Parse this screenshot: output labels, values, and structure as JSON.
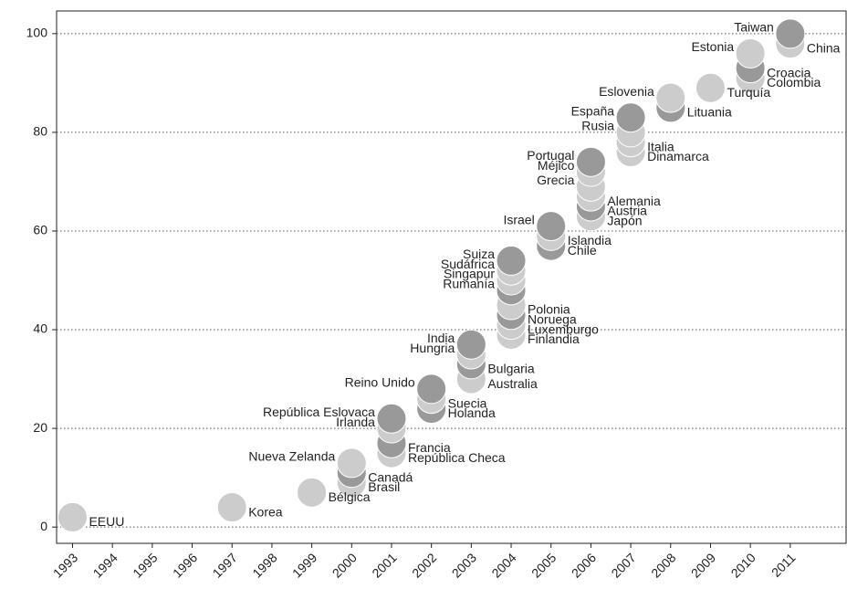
{
  "chart_data": {
    "type": "scatter",
    "x": [
      1993,
      1997,
      1999,
      2000,
      2000,
      2000,
      2001,
      2001,
      2001,
      2001,
      2002,
      2002,
      2002,
      2003,
      2003,
      2003,
      2003,
      2004,
      2004,
      2004,
      2004,
      2004,
      2004,
      2004,
      2004,
      2005,
      2005,
      2005,
      2006,
      2006,
      2006,
      2006,
      2006,
      2006,
      2007,
      2007,
      2007,
      2007,
      2008,
      2008,
      2009,
      2010,
      2010,
      2010,
      2011,
      2011
    ],
    "values": [
      2,
      4,
      7,
      9,
      11,
      13,
      15,
      17,
      20,
      22,
      24,
      26,
      28,
      30,
      33,
      35,
      37,
      39,
      41,
      43,
      45,
      48,
      50,
      52,
      54,
      57,
      59,
      61,
      63,
      65,
      67,
      69,
      72,
      74,
      76,
      78,
      80,
      83,
      85,
      87,
      89,
      91,
      93,
      96,
      98,
      100
    ],
    "labels": [
      "EEUU",
      "Korea",
      "Bélgica",
      "Brasil",
      "Canadá",
      "Nueva Zelanda",
      "República Checa",
      "Francia",
      "Irlanda",
      "República Eslovaca",
      "Holanda",
      "Suecia",
      "Reino Unido",
      "Australia",
      "Bulgaria",
      "Hungria",
      "India",
      "Finlandia",
      "Luxemburgo",
      "Noruega",
      "Polonia",
      "Rumanía",
      "Singapur",
      "Sudáfrica",
      "Suiza",
      "Chile",
      "Islandia",
      "Israel",
      "Japón",
      "Austria",
      "Alemania",
      "Grecia",
      "Méjico",
      "Portugal",
      "Dinamarca",
      "Italia",
      "Rusia",
      "España",
      "Lituania",
      "Eslovenia",
      "Turquía",
      "Colombia",
      "Croacia",
      "Estonia",
      "China",
      "Taiwan"
    ],
    "colors": [
      "#cccccc",
      "#cccccc",
      "#cccccc",
      "#cccccc",
      "#999999",
      "#cccccc",
      "#cccccc",
      "#999999",
      "#cccccc",
      "#999999",
      "#999999",
      "#cccccc",
      "#999999",
      "#cccccc",
      "#999999",
      "#cccccc",
      "#999999",
      "#cccccc",
      "#cccccc",
      "#999999",
      "#cccccc",
      "#999999",
      "#cccccc",
      "#cccccc",
      "#999999",
      "#999999",
      "#cccccc",
      "#999999",
      "#cccccc",
      "#999999",
      "#cccccc",
      "#cccccc",
      "#cccccc",
      "#999999",
      "#cccccc",
      "#cccccc",
      "#cccccc",
      "#999999",
      "#999999",
      "#cccccc",
      "#cccccc",
      "#cccccc",
      "#999999",
      "#cccccc",
      "#cccccc",
      "#999999"
    ],
    "xlim": [
      1992.6,
      2012.4
    ],
    "xticks": [
      1993,
      1994,
      1995,
      1996,
      1997,
      1998,
      1999,
      2000,
      2001,
      2002,
      2003,
      2004,
      2005,
      2006,
      2007,
      2008,
      2009,
      2010,
      2011
    ],
    "ylim": [
      -3.3,
      104.6
    ],
    "yticks": [
      0,
      20,
      40,
      60,
      80,
      100
    ],
    "grid": true
  }
}
